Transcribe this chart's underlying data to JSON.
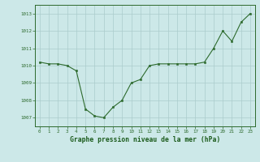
{
  "x": [
    0,
    1,
    2,
    3,
    4,
    5,
    6,
    7,
    8,
    9,
    10,
    11,
    12,
    13,
    14,
    15,
    16,
    17,
    18,
    19,
    20,
    21,
    22,
    23
  ],
  "y": [
    1010.2,
    1010.1,
    1010.1,
    1010.0,
    1009.7,
    1007.5,
    1007.1,
    1007.0,
    1007.6,
    1008.0,
    1009.0,
    1009.2,
    1010.0,
    1010.1,
    1010.1,
    1010.1,
    1010.1,
    1010.1,
    1010.2,
    1011.0,
    1012.0,
    1011.4,
    1012.5,
    1013.0
  ],
  "line_color": "#2d6a2d",
  "marker_color": "#2d6a2d",
  "bg_color": "#cce8e8",
  "grid_color": "#aacccc",
  "xlabel": "Graphe pression niveau de la mer (hPa)",
  "xlabel_color": "#1a5a1a",
  "yticks": [
    1007,
    1008,
    1009,
    1010,
    1011,
    1012,
    1013
  ],
  "xticks": [
    0,
    1,
    2,
    3,
    4,
    5,
    6,
    7,
    8,
    9,
    10,
    11,
    12,
    13,
    14,
    15,
    16,
    17,
    18,
    19,
    20,
    21,
    22,
    23
  ],
  "ylim": [
    1006.5,
    1013.5
  ],
  "xlim": [
    -0.5,
    23.5
  ],
  "tick_color": "#2d6a2d",
  "spine_color": "#2d6a2d",
  "font_color": "#2d6a2d",
  "tick_fontsize": 4.2,
  "ylabel_fontsize": 4.2,
  "xlabel_fontsize": 5.8
}
